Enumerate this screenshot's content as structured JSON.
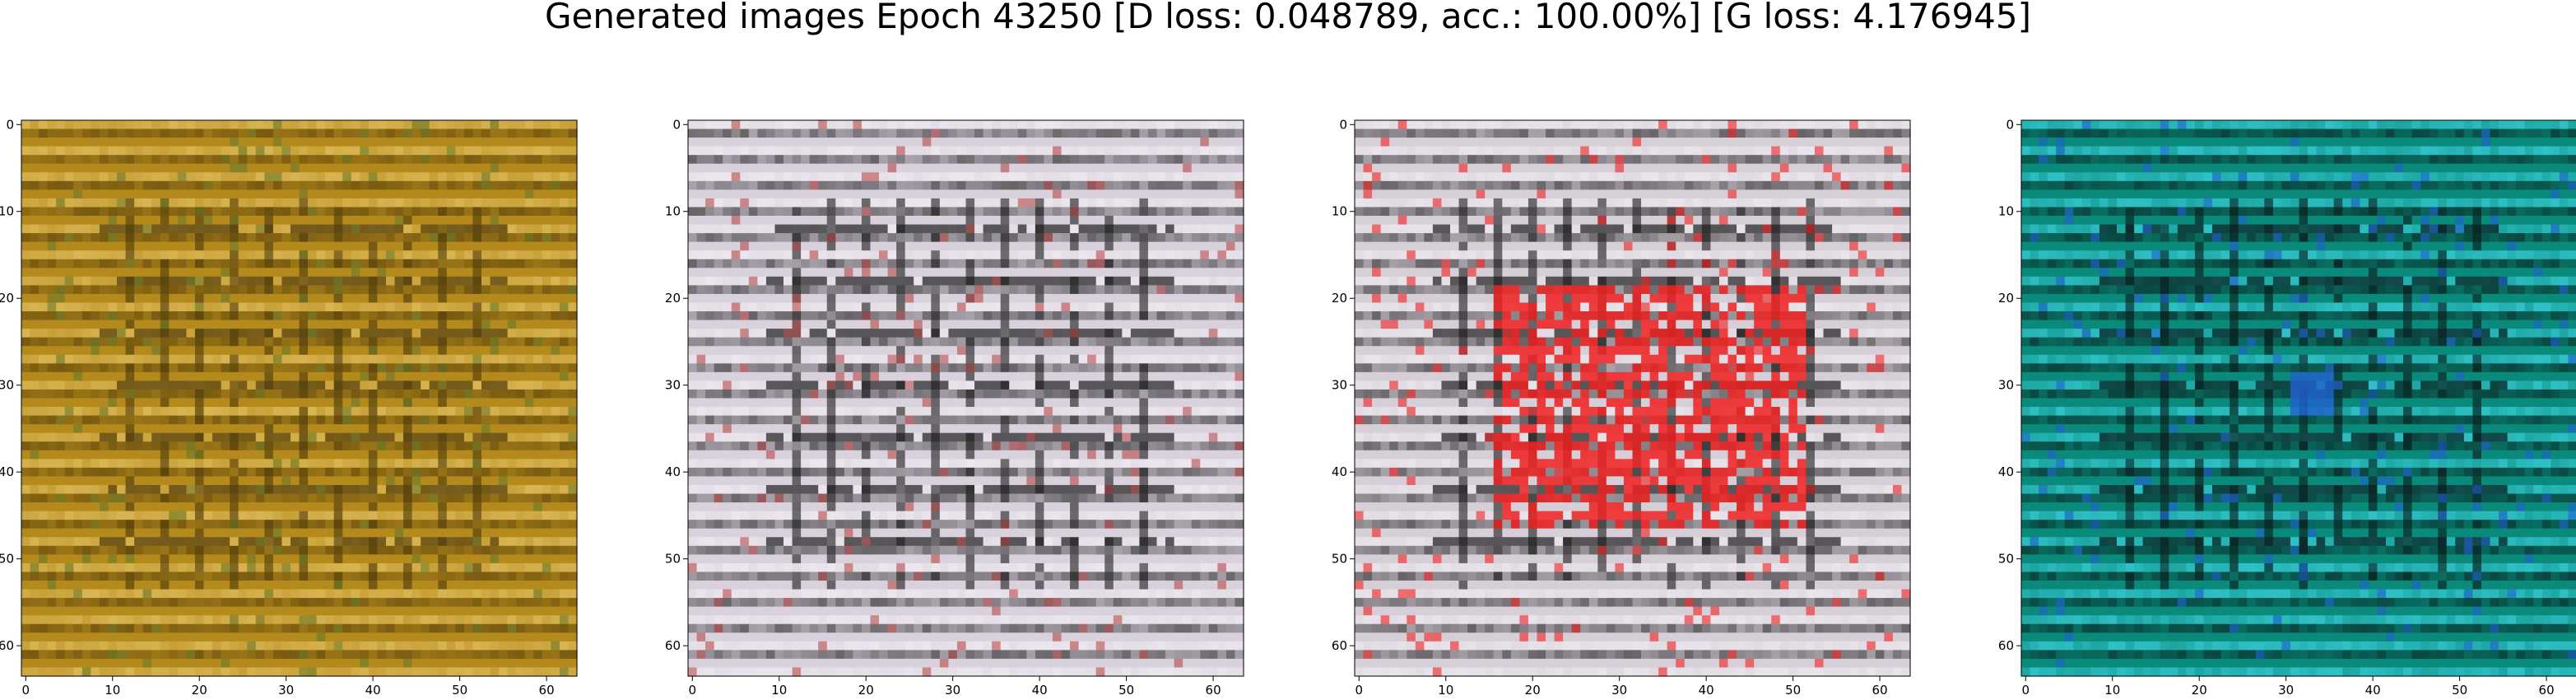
{
  "figure": {
    "title": "Generated images Epoch 43250 [D loss: 0.048789, acc.: 100.00%] [G loss: 4.176945]"
  },
  "axes": {
    "x_ticks": [
      "0",
      "10",
      "20",
      "30",
      "40",
      "50",
      "60"
    ],
    "y_ticks": [
      "0",
      "10",
      "20",
      "30",
      "40",
      "50",
      "60"
    ],
    "x_range": [
      0,
      63
    ],
    "y_range": [
      0,
      63
    ]
  },
  "panels": [
    {
      "id": "sample-1",
      "base_color": "#b58a1c",
      "stripe_dark": "#4e3a0a",
      "stripe_light": "#e8c86a",
      "accent": "#6a7a2a"
    },
    {
      "id": "sample-2",
      "base_color": "#d9d2dc",
      "stripe_dark": "#1a1a1a",
      "stripe_light": "#f4f0f6",
      "accent": "#b84a4a"
    },
    {
      "id": "sample-3",
      "base_color": "#d7cfd8",
      "stripe_dark": "#1a1a1a",
      "stripe_light": "#f2eef4",
      "accent": "#f02020"
    },
    {
      "id": "sample-4",
      "base_color": "#0a8a7a",
      "stripe_dark": "#081818",
      "stripe_light": "#40d8e8",
      "accent": "#2060d0"
    }
  ]
}
